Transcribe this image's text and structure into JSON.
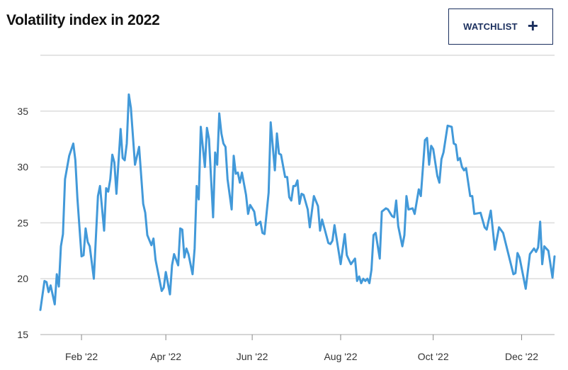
{
  "header": {
    "title": "Volatility index in 2022",
    "watchlist_label": "WATCHLIST",
    "watchlist_icon": "plus-icon"
  },
  "chart_data": {
    "type": "line",
    "title": "Volatility index in 2022",
    "xlabel": "",
    "ylabel": "",
    "x_unit": "trading day index of 2022",
    "xlim": [
      0,
      250
    ],
    "ylim": [
      15,
      40
    ],
    "grid": true,
    "line_color": "#4299d9",
    "yticks": [
      {
        "value": 15,
        "label": "15"
      },
      {
        "value": 20,
        "label": "20"
      },
      {
        "value": 25,
        "label": "25"
      },
      {
        "value": 30,
        "label": "30"
      },
      {
        "value": 35,
        "label": "35"
      }
    ],
    "xticks": [
      {
        "value": 20,
        "label": "Feb '22"
      },
      {
        "value": 61,
        "label": "Apr '22"
      },
      {
        "value": 103,
        "label": "Jun '22"
      },
      {
        "value": 146,
        "label": "Aug '22"
      },
      {
        "value": 191,
        "label": "Oct '22"
      },
      {
        "value": 234,
        "label": "Dec '22"
      }
    ],
    "series": [
      {
        "name": "Volatility index",
        "points": [
          [
            0,
            17.2
          ],
          [
            2,
            19.8
          ],
          [
            3,
            19.7
          ],
          [
            4,
            18.8
          ],
          [
            5,
            19.4
          ],
          [
            7,
            17.7
          ],
          [
            8,
            20.4
          ],
          [
            9,
            19.3
          ],
          [
            10,
            22.9
          ],
          [
            11,
            24.0
          ],
          [
            12,
            28.9
          ],
          [
            14,
            31.0
          ],
          [
            16,
            32.1
          ],
          [
            17,
            30.6
          ],
          [
            18,
            27.2
          ],
          [
            20,
            22.0
          ],
          [
            21,
            22.1
          ],
          [
            22,
            24.5
          ],
          [
            23,
            23.3
          ],
          [
            24,
            22.9
          ],
          [
            26,
            20.0
          ],
          [
            28,
            27.4
          ],
          [
            29,
            28.3
          ],
          [
            31,
            24.3
          ],
          [
            32,
            28.1
          ],
          [
            33,
            27.8
          ],
          [
            34,
            28.9
          ],
          [
            35,
            31.1
          ],
          [
            36,
            30.4
          ],
          [
            37,
            27.6
          ],
          [
            39,
            33.4
          ],
          [
            40,
            30.8
          ],
          [
            41,
            30.6
          ],
          [
            42,
            32.1
          ],
          [
            43,
            36.5
          ],
          [
            44,
            35.3
          ],
          [
            46,
            30.2
          ],
          [
            48,
            31.8
          ],
          [
            50,
            26.7
          ],
          [
            51,
            25.9
          ],
          [
            52,
            23.9
          ],
          [
            54,
            23.0
          ],
          [
            55,
            23.6
          ],
          [
            56,
            21.7
          ],
          [
            59,
            18.9
          ],
          [
            60,
            19.2
          ],
          [
            61,
            20.6
          ],
          [
            63,
            18.6
          ],
          [
            64,
            21.2
          ],
          [
            65,
            22.2
          ],
          [
            67,
            21.2
          ],
          [
            68,
            24.5
          ],
          [
            69,
            24.4
          ],
          [
            70,
            21.9
          ],
          [
            71,
            22.7
          ],
          [
            72,
            22.2
          ],
          [
            74,
            20.4
          ],
          [
            75,
            22.7
          ],
          [
            76,
            28.3
          ],
          [
            77,
            27.1
          ],
          [
            78,
            33.6
          ],
          [
            80,
            30.0
          ],
          [
            81,
            33.5
          ],
          [
            82,
            32.5
          ],
          [
            84,
            25.5
          ],
          [
            85,
            31.3
          ],
          [
            86,
            30.2
          ],
          [
            87,
            34.8
          ],
          [
            88,
            33.0
          ],
          [
            89,
            32.1
          ],
          [
            90,
            31.8
          ],
          [
            91,
            28.9
          ],
          [
            93,
            26.2
          ],
          [
            94,
            31.0
          ],
          [
            95,
            29.4
          ],
          [
            96,
            29.5
          ],
          [
            97,
            28.6
          ],
          [
            98,
            29.5
          ],
          [
            100,
            27.5
          ],
          [
            101,
            25.8
          ],
          [
            102,
            26.6
          ],
          [
            104,
            26.0
          ],
          [
            105,
            24.8
          ],
          [
            107,
            25.1
          ],
          [
            108,
            24.1
          ],
          [
            109,
            24.0
          ],
          [
            111,
            27.7
          ],
          [
            112,
            34.0
          ],
          [
            114,
            29.7
          ],
          [
            115,
            33.0
          ],
          [
            116,
            31.2
          ],
          [
            117,
            31.1
          ],
          [
            119,
            29.1
          ],
          [
            120,
            29.1
          ],
          [
            121,
            27.3
          ],
          [
            122,
            27.0
          ],
          [
            123,
            28.3
          ],
          [
            124,
            28.3
          ],
          [
            125,
            28.8
          ],
          [
            126,
            26.7
          ],
          [
            127,
            27.6
          ],
          [
            128,
            27.5
          ],
          [
            130,
            26.2
          ],
          [
            131,
            24.6
          ],
          [
            133,
            27.4
          ],
          [
            135,
            26.5
          ],
          [
            136,
            24.3
          ],
          [
            137,
            25.3
          ],
          [
            140,
            23.2
          ],
          [
            141,
            23.1
          ],
          [
            142,
            23.4
          ],
          [
            143,
            24.8
          ],
          [
            146,
            21.3
          ],
          [
            148,
            24.0
          ],
          [
            149,
            22.1
          ],
          [
            151,
            21.3
          ],
          [
            153,
            21.8
          ],
          [
            154,
            19.8
          ],
          [
            155,
            20.2
          ],
          [
            156,
            19.6
          ],
          [
            157,
            20.0
          ],
          [
            158,
            19.8
          ],
          [
            159,
            20.0
          ],
          [
            160,
            19.6
          ],
          [
            161,
            20.8
          ],
          [
            162,
            23.9
          ],
          [
            163,
            24.1
          ],
          [
            165,
            21.8
          ],
          [
            166,
            26.0
          ],
          [
            168,
            26.3
          ],
          [
            169,
            26.2
          ],
          [
            171,
            25.6
          ],
          [
            172,
            25.5
          ],
          [
            173,
            27.0
          ],
          [
            174,
            24.7
          ],
          [
            176,
            22.9
          ],
          [
            177,
            23.9
          ],
          [
            178,
            27.4
          ],
          [
            179,
            26.2
          ],
          [
            181,
            26.3
          ],
          [
            182,
            25.8
          ],
          [
            184,
            28.0
          ],
          [
            185,
            27.4
          ],
          [
            187,
            32.4
          ],
          [
            188,
            32.6
          ],
          [
            189,
            30.2
          ],
          [
            190,
            31.9
          ],
          [
            191,
            31.6
          ],
          [
            193,
            29.2
          ],
          [
            194,
            28.6
          ],
          [
            195,
            30.7
          ],
          [
            196,
            31.3
          ],
          [
            198,
            33.7
          ],
          [
            200,
            33.6
          ],
          [
            201,
            32.1
          ],
          [
            202,
            32.0
          ],
          [
            203,
            30.6
          ],
          [
            204,
            30.8
          ],
          [
            205,
            30.0
          ],
          [
            206,
            29.7
          ],
          [
            207,
            29.9
          ],
          [
            209,
            27.4
          ],
          [
            210,
            27.4
          ],
          [
            211,
            25.8
          ],
          [
            214,
            25.9
          ],
          [
            216,
            24.6
          ],
          [
            217,
            24.4
          ],
          [
            219,
            26.1
          ],
          [
            221,
            22.6
          ],
          [
            223,
            24.6
          ],
          [
            225,
            24.1
          ],
          [
            230,
            20.4
          ],
          [
            231,
            20.5
          ],
          [
            232,
            22.3
          ],
          [
            233,
            21.9
          ],
          [
            236,
            19.1
          ],
          [
            238,
            22.2
          ],
          [
            240,
            22.7
          ],
          [
            241,
            22.4
          ],
          [
            242,
            22.8
          ],
          [
            243,
            25.1
          ],
          [
            244,
            21.3
          ],
          [
            245,
            22.9
          ],
          [
            247,
            22.5
          ],
          [
            249,
            20.1
          ],
          [
            250,
            22.0
          ]
        ]
      }
    ]
  }
}
